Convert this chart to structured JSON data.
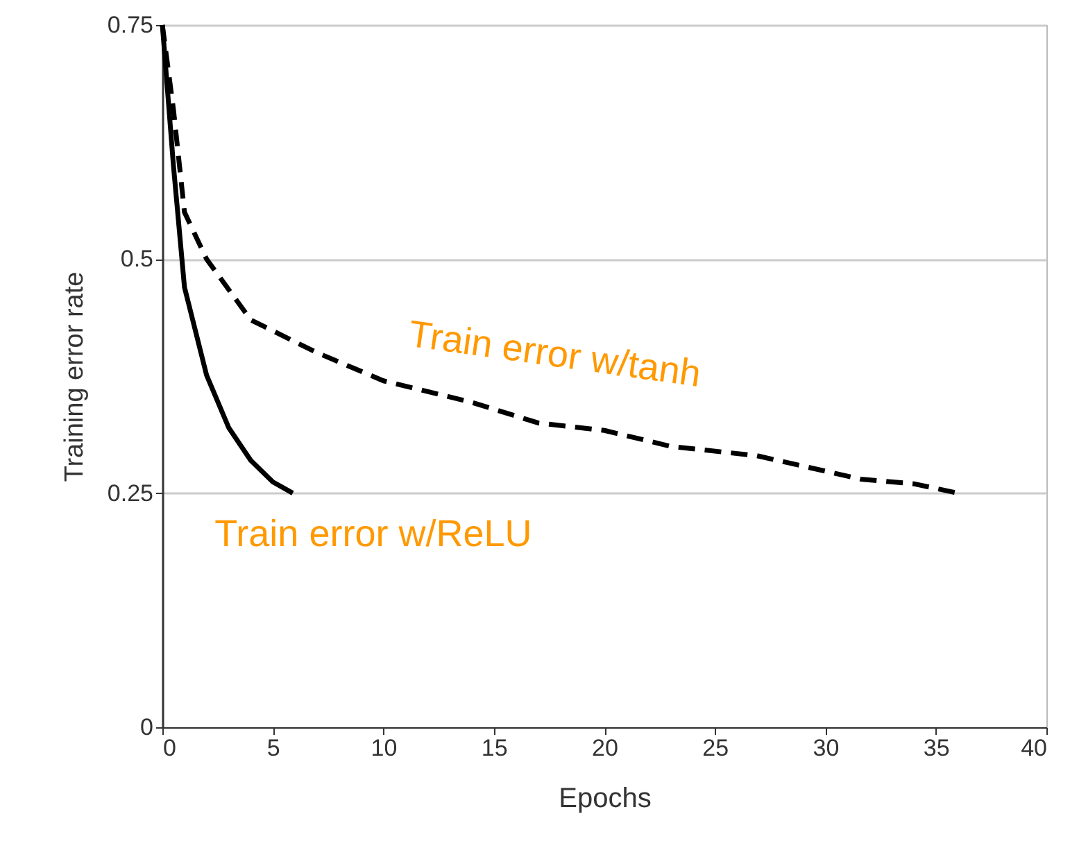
{
  "chart_data": {
    "type": "line",
    "xlabel": "Epochs",
    "ylabel": "Training error rate",
    "xlim": [
      0,
      40
    ],
    "ylim": [
      0,
      0.75
    ],
    "xticks": [
      0,
      5,
      10,
      15,
      20,
      25,
      30,
      35,
      40
    ],
    "yticks": [
      0,
      0.25,
      0.5,
      0.75
    ],
    "grid": "y",
    "series": [
      {
        "name": "Train error w/ReLU",
        "color": "#000000",
        "line_style": "solid",
        "x": [
          0,
          0.5,
          1,
          2,
          3,
          4,
          5,
          5.9
        ],
        "values": [
          0.75,
          0.6,
          0.47,
          0.376,
          0.32,
          0.285,
          0.262,
          0.25
        ]
      },
      {
        "name": "Train error w/tanh",
        "color": "#000000",
        "line_style": "dashed",
        "x": [
          0,
          0.5,
          1,
          2,
          4,
          7,
          10,
          14,
          17,
          20,
          23,
          26.9,
          31.6,
          34,
          36
        ],
        "values": [
          0.75,
          0.66,
          0.55,
          0.5,
          0.435,
          0.4,
          0.37,
          0.347,
          0.325,
          0.317,
          0.3,
          0.29,
          0.265,
          0.26,
          0.25
        ]
      }
    ]
  }
}
